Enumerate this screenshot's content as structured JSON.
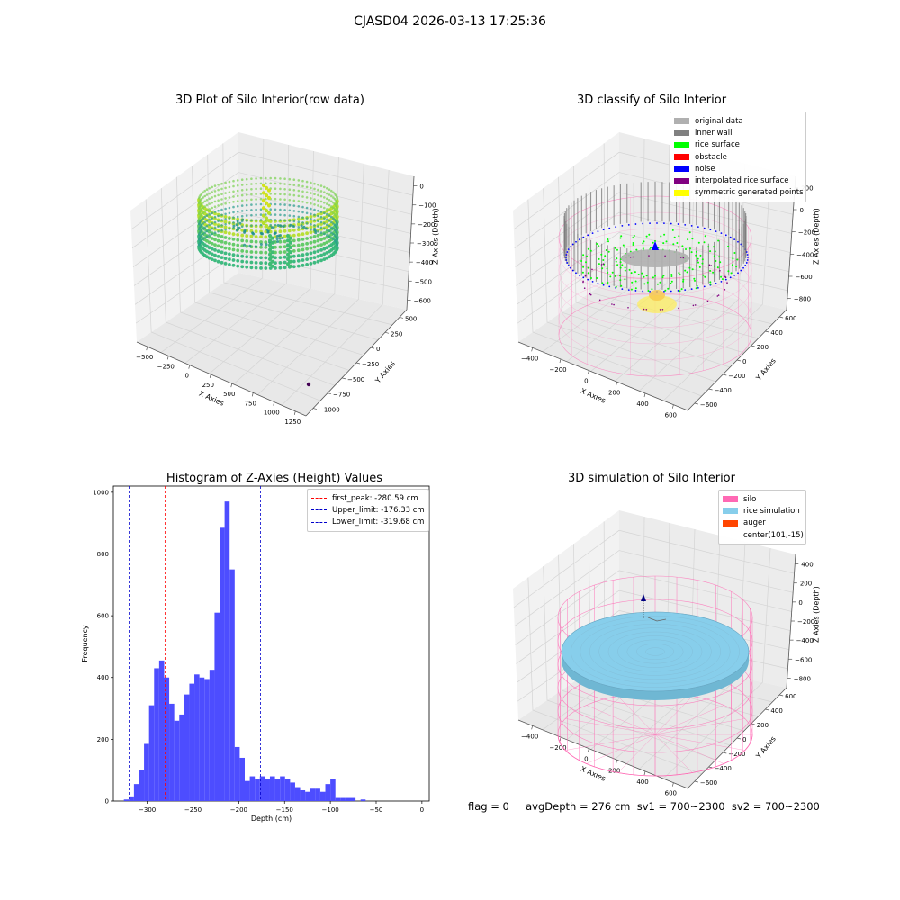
{
  "figure": {
    "suptitle": "CJASD04 2026-03-13 17:25:36",
    "footer": "flag = 0     avgDepth = 276 cm  sv1 = 700~2300  sv2 = 700~2300"
  },
  "colors": {
    "hist_bar": "#4d4dff",
    "peak_line": "#ff0000",
    "limit_line": "#0000cc",
    "silo_mesh": "#ff69b4",
    "rice_sim": "#87ceeb",
    "auger": "#ff4500",
    "wall_gray": "#808080"
  },
  "chart_data": [
    {
      "type": "scatter",
      "panel": "3d-raw",
      "title": "3D Plot of Silo Interior(row data)",
      "xlabel": "X Axies",
      "ylabel": "Y Axies",
      "zlabel": "Z Axies (Depth)",
      "x_ticks": [
        "−500",
        "−250",
        "0",
        "250",
        "500",
        "750",
        "1000",
        "1250"
      ],
      "y_ticks": [
        "−1000",
        "−750",
        "−500",
        "−250",
        "0",
        "250",
        "500"
      ],
      "z_ticks": [
        "0",
        "−100",
        "−200",
        "−300",
        "−400",
        "−500",
        "−600"
      ],
      "colormap": "viridis"
    },
    {
      "type": "scatter",
      "panel": "3d-classify",
      "title": "3D classify of Silo Interior",
      "xlabel": "X Axies",
      "ylabel": "Y Axies",
      "zlabel": "Z Axies (Depth)",
      "x_ticks": [
        "−400",
        "−200",
        "0",
        "200",
        "400",
        "600"
      ],
      "y_ticks": [
        "−600",
        "−400",
        "−200",
        "0",
        "200",
        "400",
        "600"
      ],
      "z_ticks": [
        "200",
        "0",
        "−200",
        "−400",
        "−600",
        "−800"
      ],
      "legend": [
        {
          "label": "original data",
          "color": "#b0b0b0"
        },
        {
          "label": "inner wall",
          "color": "#808080"
        },
        {
          "label": "rice surface",
          "color": "#00ff00"
        },
        {
          "label": "obstacle",
          "color": "#ff0000"
        },
        {
          "label": "noise",
          "color": "#0000ff"
        },
        {
          "label": "interpolated rice surface",
          "color": "#800080"
        },
        {
          "label": "symmetric generated points",
          "color": "#ffff00"
        }
      ]
    },
    {
      "type": "bar",
      "panel": "histogram",
      "title": "Histogram of Z-Axies (Height) Values",
      "xlabel": "Depth (cm)",
      "ylabel": "Frequency",
      "xlim": [
        -337,
        8
      ],
      "ylim": [
        0,
        1020
      ],
      "bin_start": -325.5,
      "bin_width": 5.5,
      "values": [
        5,
        15,
        55,
        100,
        185,
        310,
        430,
        455,
        400,
        315,
        260,
        280,
        345,
        380,
        410,
        400,
        395,
        425,
        610,
        885,
        970,
        750,
        175,
        140,
        65,
        80,
        70,
        80,
        70,
        80,
        70,
        80,
        70,
        60,
        45,
        35,
        30,
        40,
        40,
        30,
        55,
        70,
        10,
        10,
        10,
        10,
        0,
        5,
        0
      ],
      "x_ticks": [
        -300,
        -250,
        -200,
        -150,
        -100,
        -50,
        0
      ],
      "y_ticks": [
        0,
        200,
        400,
        600,
        800,
        1000
      ],
      "vlines": [
        {
          "x": -280.59,
          "color": "#ff0000",
          "label": "first_peak: -280.59 cm"
        },
        {
          "x": -176.33,
          "color": "#0000cc",
          "label": "Upper_limit: -176.33 cm"
        },
        {
          "x": -319.68,
          "color": "#0000cc",
          "label": "Lower_limit: -319.68 cm"
        }
      ],
      "legend_position": "upper right"
    },
    {
      "type": "scatter",
      "panel": "3d-simulation",
      "title": "3D simulation of Silo Interior",
      "xlabel": "X Axies",
      "ylabel": "Y Axies",
      "zlabel": "Z Axies (Depth)",
      "x_ticks": [
        "−400",
        "−200",
        "0",
        "200",
        "400",
        "600"
      ],
      "y_ticks": [
        "−600",
        "−400",
        "−200",
        "0",
        "200",
        "400",
        "600"
      ],
      "z_ticks": [
        "400",
        "200",
        "0",
        "−200",
        "−400",
        "−600",
        "−800"
      ],
      "legend": [
        {
          "label": "silo",
          "color": "#ff69b4"
        },
        {
          "label": "rice simulation",
          "color": "#87ceeb"
        },
        {
          "label": "auger",
          "color": "#ff4500"
        },
        {
          "label": "center(101,-15)",
          "color": ""
        }
      ]
    }
  ]
}
